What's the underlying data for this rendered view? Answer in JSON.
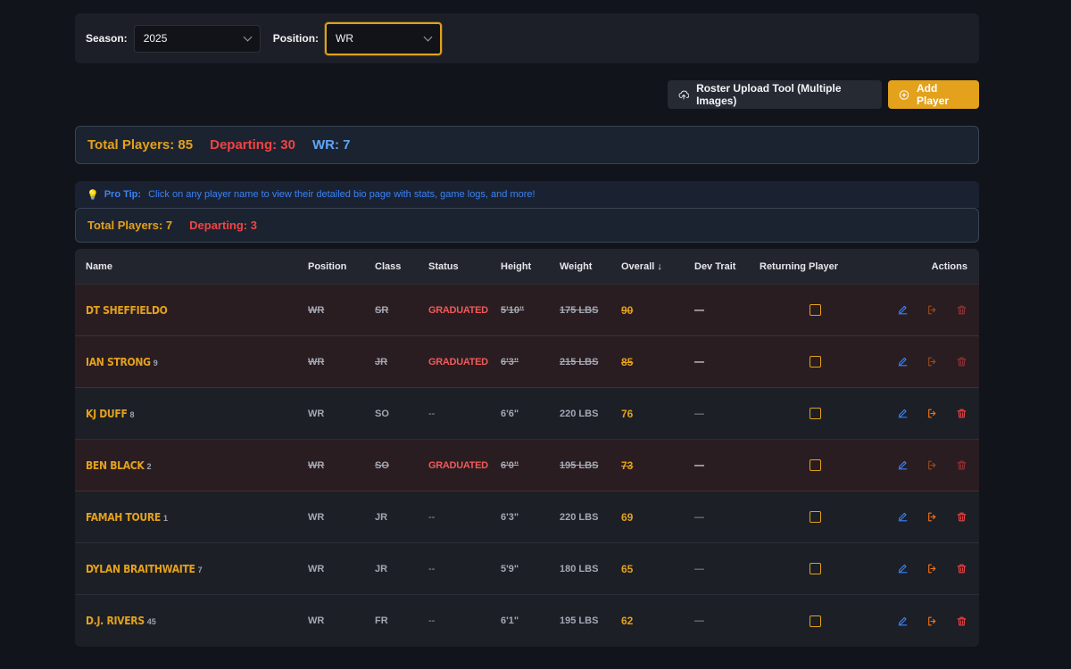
{
  "filters": {
    "season_label": "Season:",
    "season_value": "2025",
    "position_label": "Position:",
    "position_value": "WR"
  },
  "toolbar": {
    "upload_label": "Roster Upload Tool (Multiple Images)",
    "add_label": "Add Player"
  },
  "summary": {
    "total": "Total Players: 85",
    "departing": "Departing: 30",
    "position_count": "WR: 7"
  },
  "protip": {
    "title": "Pro Tip:",
    "text": "Click on any player name to view their detailed bio page with stats, game logs, and more!"
  },
  "summary2": {
    "total": "Total Players: 7",
    "departing": "Departing: 3"
  },
  "table": {
    "headers": {
      "name": "Name",
      "position": "Position",
      "class": "Class",
      "status": "Status",
      "height": "Height",
      "weight": "Weight",
      "overall": "Overall ↓",
      "dev": "Dev Trait",
      "returning": "Returning Player",
      "actions": "Actions"
    },
    "rows": [
      {
        "name": "DT SHEFFIELDO",
        "jersey": "",
        "pos": "WR",
        "cls": "SR",
        "status": "GRADUATED",
        "height": "5'10\"",
        "weight": "175 LBS",
        "overall": "90",
        "dev": "—",
        "departed": true
      },
      {
        "name": "IAN STRONG",
        "jersey": "9",
        "pos": "WR",
        "cls": "JR",
        "status": "GRADUATED",
        "height": "6'3\"",
        "weight": "215 LBS",
        "overall": "85",
        "dev": "—",
        "departed": true
      },
      {
        "name": "KJ DUFF",
        "jersey": "8",
        "pos": "WR",
        "cls": "SO",
        "status": "--",
        "height": "6'6\"",
        "weight": "220 LBS",
        "overall": "76",
        "dev": "—",
        "departed": false
      },
      {
        "name": "BEN BLACK",
        "jersey": "2",
        "pos": "WR",
        "cls": "SO",
        "status": "GRADUATED",
        "height": "6'0\"",
        "weight": "195 LBS",
        "overall": "73",
        "dev": "—",
        "departed": true
      },
      {
        "name": "FAMAH TOURE",
        "jersey": "1",
        "pos": "WR",
        "cls": "JR",
        "status": "--",
        "height": "6'3\"",
        "weight": "220 LBS",
        "overall": "69",
        "dev": "—",
        "departed": false
      },
      {
        "name": "DYLAN BRAITHWAITE",
        "jersey": "7",
        "pos": "WR",
        "cls": "JR",
        "status": "--",
        "height": "5'9\"",
        "weight": "180 LBS",
        "overall": "65",
        "dev": "—",
        "departed": false
      },
      {
        "name": "D.J. RIVERS",
        "jersey": "45",
        "pos": "WR",
        "cls": "FR",
        "status": "--",
        "height": "6'1\"",
        "weight": "195 LBS",
        "overall": "62",
        "dev": "—",
        "departed": false
      }
    ]
  },
  "colors": {
    "accent": "#e3a11c",
    "danger": "#ef4444",
    "info": "#60a5fa",
    "background": "#11141b"
  }
}
